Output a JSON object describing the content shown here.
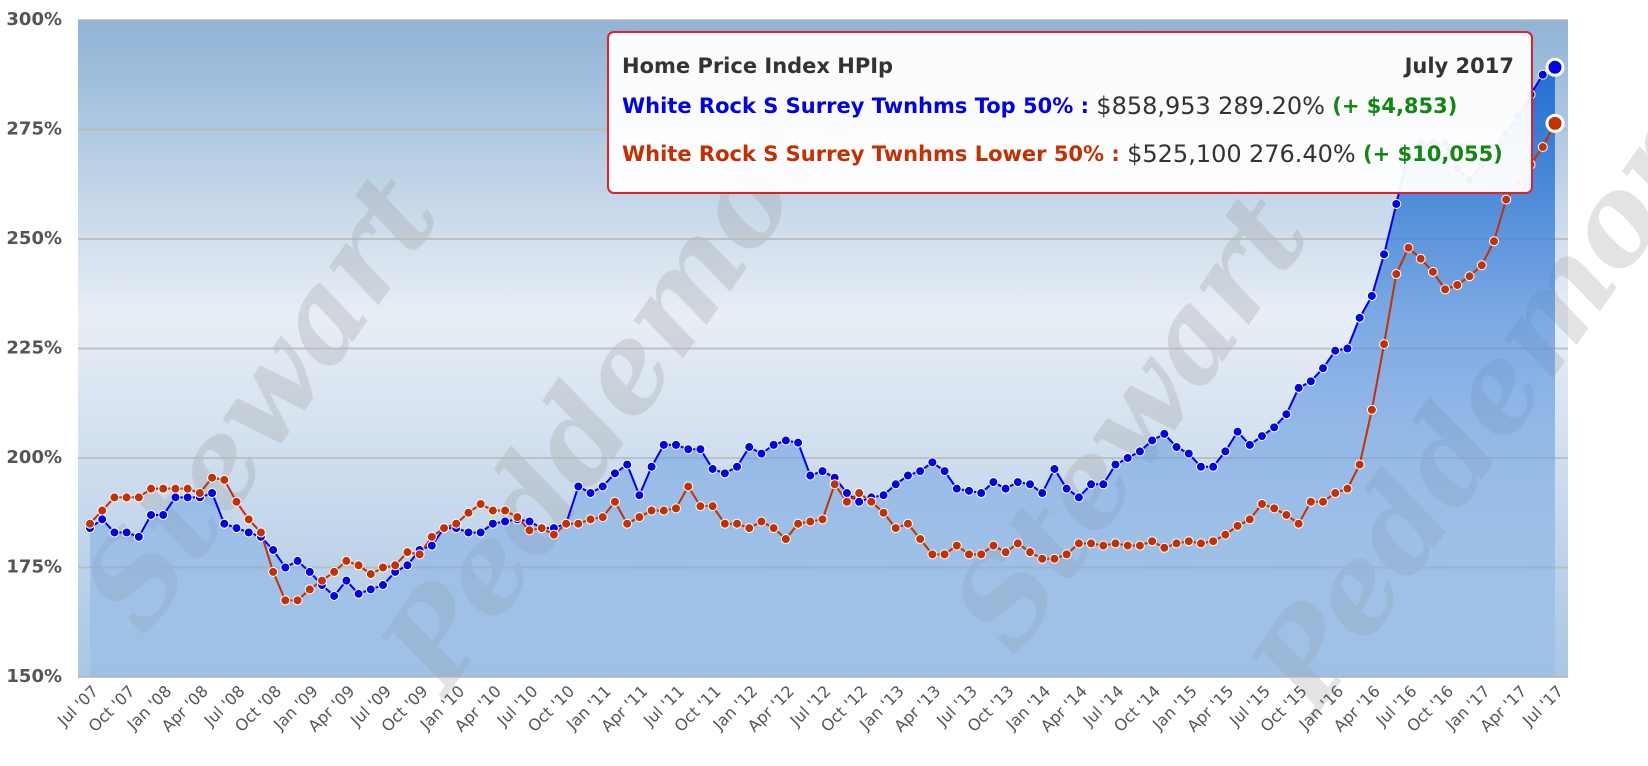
{
  "chart_data": {
    "type": "line",
    "watermark": [
      "Stewart",
      "Peddemors"
    ],
    "tooltip": {
      "title": "Home Price Index HPIp",
      "date": "July 2017",
      "rows": [
        {
          "label": "White Rock S Surrey Twnhms Top 50% :",
          "price": "$858,953",
          "index": "289.20%",
          "change": "(+ $4,853)"
        },
        {
          "label": "White Rock S Surrey Twnhms Lower 50% :",
          "price": "$525,100",
          "index": "276.40%",
          "change": "(+ $10,055)"
        }
      ]
    },
    "categories": [
      "Jul '07",
      null,
      null,
      "Oct '07",
      null,
      null,
      "Jan '08",
      null,
      null,
      "Apr '08",
      null,
      null,
      "Jul '08",
      null,
      null,
      "Oct '08",
      null,
      null,
      "Jan '09",
      null,
      null,
      "Apr '09",
      null,
      null,
      "Jul '09",
      null,
      null,
      "Oct '09",
      null,
      null,
      "Jan '10",
      null,
      null,
      "Apr '10",
      null,
      null,
      "Jul '10",
      null,
      null,
      "Oct '10",
      null,
      null,
      "Jan '11",
      null,
      null,
      "Apr '11",
      null,
      null,
      "Jul '11",
      null,
      null,
      "Oct '11",
      null,
      null,
      "Jan '12",
      null,
      null,
      "Apr '12",
      null,
      null,
      "Jul '12",
      null,
      null,
      "Oct '12",
      null,
      null,
      "Jan '13",
      null,
      null,
      "Apr '13",
      null,
      null,
      "Jul '13",
      null,
      null,
      "Oct '13",
      null,
      null,
      "Jan '14",
      null,
      null,
      "Apr '14",
      null,
      null,
      "Jul '14",
      null,
      null,
      "Oct '14",
      null,
      null,
      "Jan '15",
      null,
      null,
      "Apr '15",
      null,
      null,
      "Jul '15",
      null,
      null,
      "Oct '15",
      null,
      null,
      "Jan '16",
      null,
      null,
      "Apr '16",
      null,
      null,
      "Jul '16",
      null,
      null,
      "Oct '16",
      null,
      null,
      "Jan '17",
      null,
      null,
      "Apr '17",
      null,
      null,
      "Jul '17"
    ],
    "series": [
      {
        "name": "White Rock S Surrey Twnhms Top 50%",
        "color": "#0000ee",
        "values": [
          184,
          186,
          183,
          183,
          182,
          187,
          187,
          191,
          191,
          191,
          192,
          185,
          184,
          183,
          182,
          179,
          175,
          176.5,
          174,
          171,
          168.5,
          172,
          169,
          170,
          171,
          174,
          175.5,
          179,
          180,
          184,
          184,
          183,
          183,
          185,
          185.5,
          186,
          185.5,
          184,
          184,
          185,
          193.5,
          192,
          193.5,
          196.5,
          198.5,
          191.5,
          198,
          203,
          203,
          202,
          202,
          197.5,
          196.5,
          198,
          202.5,
          201,
          203,
          204,
          203.5,
          196,
          197,
          195.5,
          192,
          190,
          191,
          191.5,
          194,
          196,
          197,
          199,
          197,
          193,
          192.5,
          192,
          194.5,
          193,
          194.5,
          194,
          192,
          197.5,
          193,
          191,
          194,
          194,
          198.5,
          200,
          201.5,
          204,
          205.5,
          202.5,
          201,
          198,
          198,
          201.5,
          206,
          203,
          205,
          207,
          210,
          216,
          217.5,
          220.5,
          224.5,
          225,
          232,
          237,
          246.5,
          258,
          270,
          272,
          272,
          272,
          266,
          263.5,
          267,
          271,
          274,
          278,
          283,
          287.5,
          289.2
        ]
      },
      {
        "name": "White Rock S Surrey Twnhms Lower 50%",
        "color": "#c43000",
        "values": [
          185,
          188,
          191,
          191,
          191,
          193,
          193,
          193,
          193,
          192,
          195.5,
          195,
          190,
          186,
          183,
          174,
          167.5,
          167.5,
          170,
          172,
          174,
          176.5,
          175.5,
          173.5,
          175,
          175.5,
          178.5,
          178,
          182,
          184,
          185,
          187.5,
          189.5,
          188,
          188,
          186.5,
          183.5,
          184,
          182.5,
          185,
          185,
          186,
          186.5,
          190,
          185,
          186.5,
          188,
          188,
          188.5,
          193.5,
          189,
          189,
          185,
          185,
          184,
          185.5,
          184,
          181.5,
          185,
          185.5,
          186,
          194,
          190,
          192,
          190,
          187.5,
          184,
          185,
          181.5,
          178,
          178,
          180,
          178,
          178,
          180,
          178.5,
          180.5,
          178.5,
          177,
          177,
          178,
          180.5,
          180.5,
          180,
          180.5,
          180,
          180,
          181,
          179.5,
          180.5,
          181,
          180.5,
          181,
          182.5,
          184.5,
          186,
          189.5,
          188.5,
          187,
          185,
          190,
          190,
          192,
          193,
          198.5,
          211,
          226,
          242,
          248,
          245.5,
          242.5,
          238.5,
          239.5,
          241.5,
          244,
          249.5,
          259,
          263,
          267,
          271,
          276.4
        ]
      }
    ],
    "ylim": [
      150,
      300
    ],
    "yticks": [
      {
        "value": 150,
        "label": "150%"
      },
      {
        "value": 175,
        "label": "175%"
      },
      {
        "value": 200,
        "label": "200%"
      },
      {
        "value": 225,
        "label": "225%"
      },
      {
        "value": 250,
        "label": "250%"
      },
      {
        "value": 275,
        "label": "275%"
      },
      {
        "value": 300,
        "label": "300%"
      }
    ],
    "grid": true
  }
}
